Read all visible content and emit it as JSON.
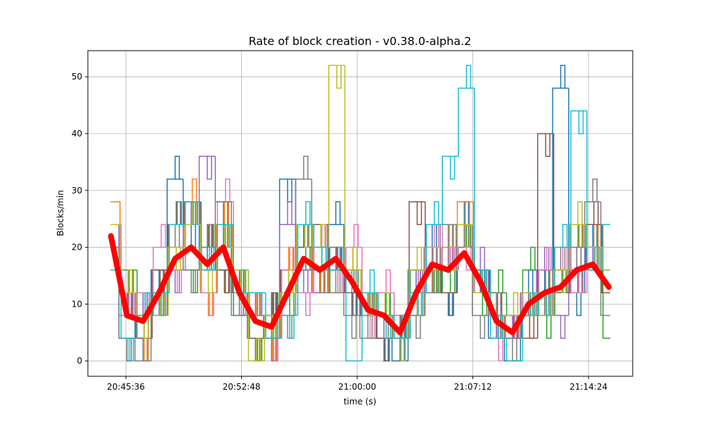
{
  "chart_data": {
    "type": "line",
    "title": "Rate of block creation  -  v0.38.0-alpha.2",
    "xlabel": "time (s)",
    "ylabel": "Blocks/min",
    "xlim": [
      "20:43:14",
      "21:17:09"
    ],
    "ylim": [
      -2.7,
      54.6
    ],
    "grid": true,
    "xticks": [
      "20:45:36",
      "20:52:48",
      "21:00:00",
      "21:07:12",
      "21:14:24"
    ],
    "yticks": [
      0,
      10,
      20,
      30,
      40,
      50
    ],
    "x": [
      "20:44:40",
      "20:45:40",
      "20:46:40",
      "20:47:40",
      "20:48:40",
      "20:49:40",
      "20:50:40",
      "20:51:40",
      "20:52:40",
      "20:53:40",
      "20:54:40",
      "20:55:40",
      "20:56:40",
      "20:57:40",
      "20:58:40",
      "20:59:40",
      "21:00:40",
      "21:01:40",
      "21:02:40",
      "21:03:40",
      "21:04:40",
      "21:05:40",
      "21:06:40",
      "21:07:40",
      "21:08:40",
      "21:09:40",
      "21:10:40",
      "21:11:40",
      "21:12:40",
      "21:13:40",
      "21:14:40",
      "21:15:40"
    ],
    "series": [
      {
        "color": "#1f77b4",
        "values": [
          24,
          4,
          8,
          16,
          32,
          24,
          16,
          24,
          12,
          4,
          8,
          32,
          20,
          16,
          24,
          12,
          8,
          4,
          0,
          16,
          20,
          12,
          24,
          16,
          4,
          0,
          12,
          16,
          48,
          12,
          20,
          16
        ]
      },
      {
        "color": "#ff7f0e",
        "values": [
          28,
          12,
          4,
          8,
          20,
          28,
          12,
          24,
          16,
          8,
          4,
          16,
          24,
          12,
          20,
          16,
          12,
          8,
          4,
          8,
          16,
          20,
          28,
          12,
          8,
          4,
          8,
          12,
          16,
          20,
          24,
          12
        ]
      },
      {
        "color": "#2ca02c",
        "values": [
          20,
          16,
          8,
          12,
          24,
          16,
          20,
          16,
          8,
          4,
          8,
          12,
          16,
          20,
          12,
          16,
          8,
          12,
          4,
          16,
          12,
          16,
          20,
          12,
          12,
          8,
          16,
          8,
          12,
          24,
          16,
          4
        ]
      },
      {
        "color": "#9467bd",
        "values": [
          24,
          8,
          12,
          8,
          16,
          24,
          36,
          20,
          12,
          8,
          4,
          24,
          16,
          12,
          20,
          12,
          12,
          4,
          8,
          12,
          20,
          16,
          24,
          16,
          8,
          4,
          12,
          16,
          8,
          16,
          20,
          12
        ]
      },
      {
        "color": "#8c564b",
        "values": [
          20,
          12,
          4,
          16,
          24,
          28,
          20,
          16,
          12,
          4,
          8,
          16,
          20,
          24,
          16,
          12,
          8,
          4,
          4,
          28,
          16,
          12,
          20,
          16,
          8,
          8,
          4,
          40,
          12,
          16,
          24,
          12
        ]
      },
      {
        "color": "#e377c2",
        "values": [
          24,
          8,
          12,
          20,
          16,
          24,
          12,
          28,
          12,
          8,
          4,
          16,
          12,
          20,
          16,
          20,
          8,
          12,
          8,
          12,
          24,
          16,
          20,
          12,
          4,
          4,
          12,
          16,
          20,
          12,
          20,
          16
        ]
      },
      {
        "color": "#7f7f7f",
        "values": [
          20,
          4,
          0,
          12,
          20,
          16,
          20,
          28,
          8,
          4,
          4,
          8,
          32,
          16,
          12,
          8,
          4,
          8,
          4,
          8,
          12,
          24,
          20,
          8,
          8,
          4,
          8,
          12,
          16,
          20,
          28,
          8
        ]
      },
      {
        "color": "#bcbd22",
        "values": [
          24,
          12,
          8,
          8,
          20,
          24,
          16,
          20,
          16,
          0,
          8,
          12,
          24,
          20,
          52,
          16,
          12,
          8,
          4,
          16,
          20,
          16,
          24,
          12,
          8,
          8,
          12,
          8,
          16,
          24,
          20,
          16
        ]
      },
      {
        "color": "#17becf",
        "values": [
          16,
          4,
          8,
          12,
          24,
          28,
          16,
          24,
          12,
          12,
          4,
          8,
          24,
          20,
          16,
          0,
          12,
          8,
          4,
          12,
          24,
          36,
          48,
          16,
          4,
          0,
          8,
          12,
          20,
          44,
          16,
          24
        ]
      }
    ],
    "mean_series": {
      "color": "#ff0000",
      "values": [
        22,
        8,
        7,
        12,
        18,
        20,
        17,
        20,
        12,
        7,
        6,
        12,
        18,
        16,
        18,
        14,
        9,
        8,
        5,
        12,
        17,
        16,
        19,
        14,
        7,
        5,
        10,
        12,
        13,
        16,
        17,
        13
      ]
    }
  }
}
